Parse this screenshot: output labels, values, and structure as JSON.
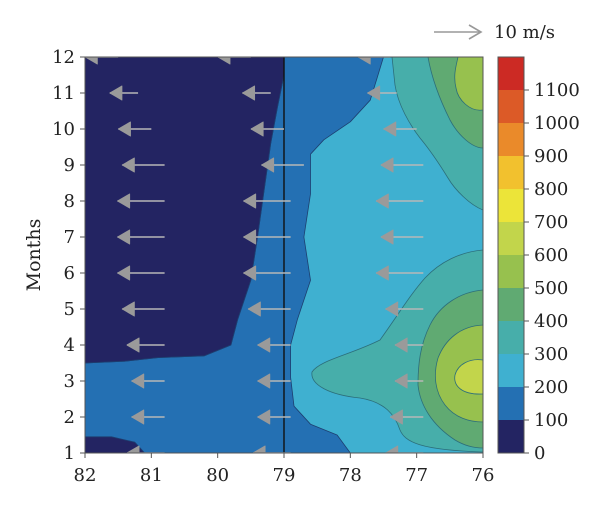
{
  "chart_data": {
    "type": "heatmap",
    "subtype": "filled-contour-with-wind-vectors",
    "ylabel": "Months",
    "xlabel": "",
    "x_ticks": [
      82,
      81,
      80,
      79,
      78,
      77,
      76
    ],
    "y_ticks": [
      1,
      2,
      3,
      4,
      5,
      6,
      7,
      8,
      9,
      10,
      11,
      12
    ],
    "xlim": [
      82,
      76
    ],
    "ylim": [
      1,
      12
    ],
    "colorbar": {
      "ticks": [
        0,
        100,
        200,
        300,
        400,
        500,
        600,
        700,
        800,
        900,
        1000,
        1100
      ],
      "levels": [
        {
          "min": 0,
          "max": 100,
          "color": "#232462"
        },
        {
          "min": 100,
          "max": 200,
          "color": "#2470b3"
        },
        {
          "min": 200,
          "max": 300,
          "color": "#3fb0d0"
        },
        {
          "min": 300,
          "max": 400,
          "color": "#47aeaa"
        },
        {
          "min": 400,
          "max": 500,
          "color": "#60aa72"
        },
        {
          "min": 500,
          "max": 600,
          "color": "#97c14e"
        },
        {
          "min": 600,
          "max": 700,
          "color": "#c2d54b"
        },
        {
          "min": 700,
          "max": 800,
          "color": "#ece439"
        },
        {
          "min": 800,
          "max": 900,
          "color": "#f2c12e"
        },
        {
          "min": 900,
          "max": 1000,
          "color": "#ea8a2a"
        },
        {
          "min": 1000,
          "max": 1100,
          "color": "#dc5a27"
        },
        {
          "min": 1100,
          "max": 1200,
          "color": "#cc2a24"
        }
      ]
    },
    "vector_key": {
      "label": "10 m/s",
      "speed": 10
    },
    "contour_regions": [
      {
        "level": 100,
        "label": "0-100 region (west)",
        "color": "#232462",
        "boundary": [
          [
            82,
            12
          ],
          [
            79,
            12
          ],
          [
            79,
            11.5
          ],
          [
            79.1,
            10.6
          ],
          [
            79.2,
            9.6
          ],
          [
            79.3,
            8.3
          ],
          [
            79.4,
            7.0
          ],
          [
            79.5,
            5.8
          ],
          [
            79.7,
            4.7
          ],
          [
            79.8,
            4.0
          ],
          [
            80.2,
            3.7
          ],
          [
            80.9,
            3.65
          ],
          [
            81.4,
            3.55
          ],
          [
            82,
            3.5
          ]
        ]
      },
      {
        "level": 100,
        "label": "0-100 small patch (bottom-left)",
        "color": "#232462",
        "boundary": [
          [
            82,
            1.45
          ],
          [
            81.6,
            1.45
          ],
          [
            81.25,
            1.3
          ],
          [
            81.1,
            1.0
          ],
          [
            82,
            1.0
          ]
        ]
      },
      {
        "level": 200,
        "label": "100-200 band",
        "color": "#2470b3",
        "boundary": [
          [
            79,
            12
          ],
          [
            77.5,
            12
          ],
          [
            77.6,
            11.4
          ],
          [
            77.7,
            10.8
          ],
          [
            78,
            10.2
          ],
          [
            78.4,
            9.7
          ],
          [
            78.6,
            9.3
          ],
          [
            78.6,
            8.2
          ],
          [
            78.7,
            7.0
          ],
          [
            78.6,
            5.8
          ],
          [
            78.8,
            4.7
          ],
          [
            78.9,
            4.0
          ],
          [
            78.9,
            3.1
          ],
          [
            78.85,
            2.3
          ],
          [
            78.6,
            1.8
          ],
          [
            78.2,
            1.5
          ],
          [
            78,
            1.0
          ],
          [
            82,
            1.0
          ],
          [
            82,
            3.5
          ],
          [
            81.4,
            3.55
          ],
          [
            80.9,
            3.65
          ],
          [
            80.2,
            3.7
          ],
          [
            79.8,
            4.0
          ],
          [
            79.7,
            4.7
          ],
          [
            79.5,
            5.8
          ],
          [
            79.4,
            7.0
          ],
          [
            79.3,
            8.3
          ],
          [
            79.2,
            9.6
          ],
          [
            79.1,
            10.6
          ],
          [
            79,
            11.5
          ]
        ]
      }
    ],
    "vectors": [
      {
        "x": 81.5,
        "y": 12,
        "u": -7.0,
        "v": 0
      },
      {
        "x": 79.5,
        "y": 12,
        "u": -7.0,
        "v": 0
      },
      {
        "x": 77.4,
        "y": 12,
        "u": -6.8,
        "v": 0
      },
      {
        "x": 81.2,
        "y": 11,
        "u": -6.0,
        "v": 0
      },
      {
        "x": 79.2,
        "y": 11,
        "u": -6.0,
        "v": 0
      },
      {
        "x": 77.3,
        "y": 11,
        "u": -6.2,
        "v": 0
      },
      {
        "x": 81.0,
        "y": 10,
        "u": -7.0,
        "v": 0
      },
      {
        "x": 79.0,
        "y": 10,
        "u": -7.0,
        "v": 0
      },
      {
        "x": 77.0,
        "y": 10,
        "u": -7.0,
        "v": 0
      },
      {
        "x": 80.8,
        "y": 9,
        "u": -9.0,
        "v": 0
      },
      {
        "x": 78.7,
        "y": 9,
        "u": -9.0,
        "v": 0
      },
      {
        "x": 76.9,
        "y": 9,
        "u": -9.0,
        "v": 0
      },
      {
        "x": 80.8,
        "y": 8,
        "u": -10.0,
        "v": 0
      },
      {
        "x": 78.9,
        "y": 8,
        "u": -10.0,
        "v": 0
      },
      {
        "x": 76.9,
        "y": 8,
        "u": -10.0,
        "v": 0
      },
      {
        "x": 80.8,
        "y": 7,
        "u": -10.0,
        "v": 0
      },
      {
        "x": 78.9,
        "y": 7,
        "u": -10.0,
        "v": 0
      },
      {
        "x": 76.9,
        "y": 7,
        "u": -9.0,
        "v": 0
      },
      {
        "x": 80.8,
        "y": 6,
        "u": -10.0,
        "v": 0
      },
      {
        "x": 78.9,
        "y": 6,
        "u": -10.0,
        "v": 0
      },
      {
        "x": 76.9,
        "y": 6,
        "u": -10.0,
        "v": 0
      },
      {
        "x": 80.8,
        "y": 5,
        "u": -9.0,
        "v": 0
      },
      {
        "x": 78.9,
        "y": 5,
        "u": -9.0,
        "v": 0
      },
      {
        "x": 76.9,
        "y": 5,
        "u": -8.0,
        "v": 0
      },
      {
        "x": 80.8,
        "y": 4,
        "u": -8.0,
        "v": 0
      },
      {
        "x": 78.9,
        "y": 4,
        "u": -7.0,
        "v": 0
      },
      {
        "x": 76.9,
        "y": 4,
        "u": -6.0,
        "v": 0
      },
      {
        "x": 80.8,
        "y": 3,
        "u": -7.0,
        "v": 0
      },
      {
        "x": 78.9,
        "y": 3,
        "u": -7.0,
        "v": 0
      },
      {
        "x": 76.9,
        "y": 3,
        "u": -6.0,
        "v": 0
      },
      {
        "x": 80.8,
        "y": 2,
        "u": -7.0,
        "v": 0
      },
      {
        "x": 78.9,
        "y": 2,
        "u": -7.0,
        "v": 0
      },
      {
        "x": 76.9,
        "y": 2,
        "u": -7.0,
        "v": 0
      },
      {
        "x": 80.8,
        "y": 1,
        "u": -8.0,
        "v": 0
      },
      {
        "x": 78.9,
        "y": 1,
        "u": -8.0,
        "v": 0
      },
      {
        "x": 76.9,
        "y": 1,
        "u": -8.0,
        "v": 0
      }
    ],
    "vertical_line": {
      "x": 79
    },
    "grid": false,
    "legend": "none"
  }
}
